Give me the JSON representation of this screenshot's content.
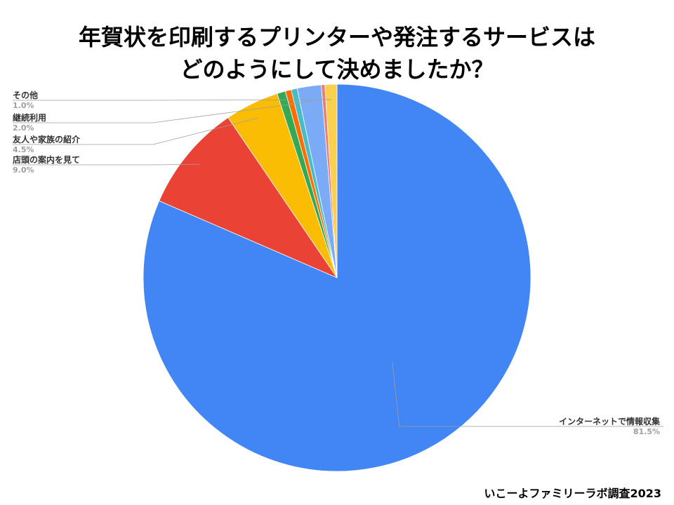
{
  "header": {
    "title_line1": "年賀状を印刷するプリンターや発注するサービスは",
    "title_line2": "どのようにして決めましたか？"
  },
  "footer": {
    "source": "いこーよファミリーラボ調査2023"
  },
  "chart_data": {
    "type": "pie",
    "start": "12 o'clock, clockwise",
    "slices": [
      {
        "label": "インターネットで情報収集",
        "value": 81.5,
        "value_label": "81.5%",
        "color": "#4285f4",
        "labeled": true
      },
      {
        "label": "店頭の案内を見て",
        "value": 9.0,
        "value_label": "9.0%",
        "color": "#ea4335",
        "labeled": true
      },
      {
        "label": "友人や家族の紹介",
        "value": 4.5,
        "value_label": "4.5%",
        "color": "#fbbc04",
        "labeled": true
      },
      {
        "label": "",
        "value": 0.7,
        "value_label": "",
        "color": "#34a853",
        "labeled": false
      },
      {
        "label": "",
        "value": 0.5,
        "value_label": "",
        "color": "#ff6d01",
        "labeled": false
      },
      {
        "label": "",
        "value": 0.5,
        "value_label": "",
        "color": "#46bdc6",
        "labeled": false
      },
      {
        "label": "継続利用",
        "value": 2.0,
        "value_label": "2.0%",
        "color": "#7baaf7",
        "labeled": true
      },
      {
        "label": "",
        "value": 0.3,
        "value_label": "",
        "color": "#f07b72",
        "labeled": false
      },
      {
        "label": "その他",
        "value": 1.0,
        "value_label": "1.0%",
        "color": "#fcd04f",
        "labeled": true
      }
    ]
  }
}
